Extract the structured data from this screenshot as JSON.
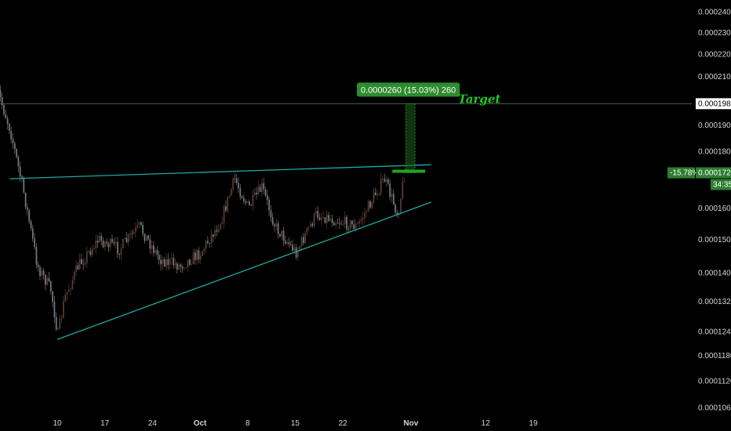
{
  "chart_data": {
    "type": "candlestick",
    "y_scale": "log",
    "ylim": [
      0.000103,
      0.000245
    ],
    "y_ticks": [
      "0.0002400",
      "0.0002300",
      "0.0002200",
      "0.0002100",
      "0.0001900",
      "0.0001800",
      "0.0001600",
      "0.0001500",
      "0.0001400",
      "0.0001320",
      "0.0001240",
      "0.0001180",
      "0.0001120",
      "0.0001060"
    ],
    "x_ticks": [
      {
        "label": "10",
        "date": "2023-09-10"
      },
      {
        "label": "17",
        "date": "2023-09-17"
      },
      {
        "label": "24",
        "date": "2023-09-24"
      },
      {
        "label": "Oct",
        "date": "2023-10-01",
        "bold": true
      },
      {
        "label": "8",
        "date": "2023-10-08"
      },
      {
        "label": "15",
        "date": "2023-10-15"
      },
      {
        "label": "22",
        "date": "2023-10-22"
      },
      {
        "label": "Nov",
        "date": "2023-11-01",
        "bold": true
      },
      {
        "label": "12",
        "date": "2023-11-12"
      },
      {
        "label": "19",
        "date": "2023-11-19"
      }
    ],
    "price_path": [
      [
        "2023-09-01",
        0.000205
      ],
      [
        "2023-09-03",
        0.000188
      ],
      [
        "2023-09-05",
        0.000165
      ],
      [
        "2023-09-07",
        0.000142
      ],
      [
        "2023-09-09",
        0.000135
      ],
      [
        "2023-09-10",
        0.000123
      ],
      [
        "2023-09-11",
        0.000133
      ],
      [
        "2023-09-13",
        0.000142
      ],
      [
        "2023-09-16",
        0.00015
      ],
      [
        "2023-09-19",
        0.000147
      ],
      [
        "2023-09-22",
        0.000154
      ],
      [
        "2023-09-25",
        0.000144
      ],
      [
        "2023-09-28",
        0.000142
      ],
      [
        "2023-10-01",
        0.000146
      ],
      [
        "2023-10-04",
        0.000156
      ],
      [
        "2023-10-06",
        0.00017
      ],
      [
        "2023-10-08",
        0.00016
      ],
      [
        "2023-10-10",
        0.000167
      ],
      [
        "2023-10-12",
        0.000154
      ],
      [
        "2023-10-15",
        0.000146
      ],
      [
        "2023-10-18",
        0.000158
      ],
      [
        "2023-10-21",
        0.000156
      ],
      [
        "2023-10-24",
        0.000154
      ],
      [
        "2023-10-27",
        0.000166
      ],
      [
        "2023-10-28",
        0.00017
      ],
      [
        "2023-10-30",
        0.000158
      ],
      [
        "2023-10-31",
        0.0001721
      ]
    ],
    "resistance_line": [
      [
        "2023-09-03",
        0.00017
      ],
      [
        "2023-11-04",
        0.000175
      ]
    ],
    "support_line": [
      [
        "2023-09-10",
        0.000122
      ],
      [
        "2023-11-04",
        0.000162
      ]
    ],
    "target_line": {
      "price": 0.0001985
    },
    "last_price": 0.0001721,
    "colors": {
      "up": "#5a3f35",
      "down": "#7a7a7a",
      "trend": "#1fa8a0",
      "target": "#22c522",
      "measure": "#1e8e1e",
      "tag": "#2e7d32"
    }
  },
  "measure_box": {
    "label": "0.0000260 (15.03%) 260"
  },
  "target_annotation": {
    "label": "Target"
  },
  "price_tags": {
    "target_price": "0.0001985",
    "change_pct": "-15.78%",
    "last_price": "0.0001721",
    "countdown": "34:35"
  }
}
